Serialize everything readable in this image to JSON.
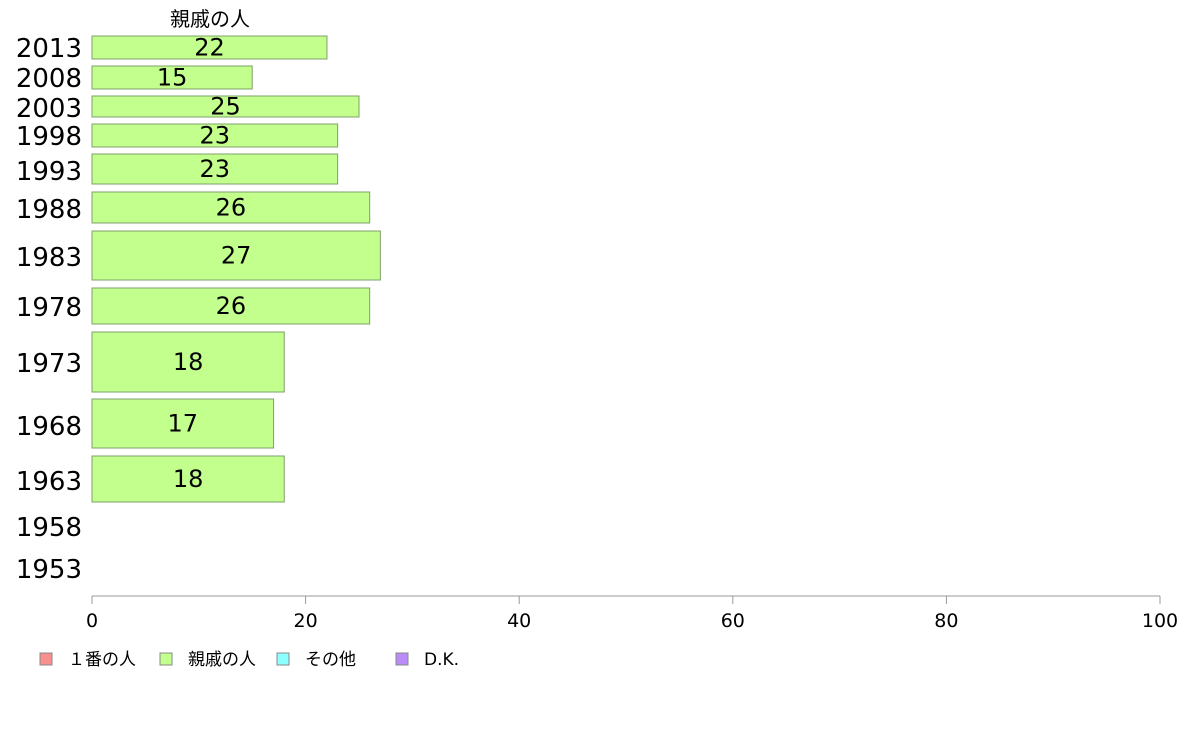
{
  "chart_data": {
    "type": "bar",
    "orientation": "horizontal",
    "stacked": true,
    "title": "",
    "xlabel": "",
    "ylabel": "",
    "xlim": [
      0,
      100
    ],
    "x_ticks": [
      0,
      20,
      40,
      60,
      80,
      100
    ],
    "grid": false,
    "legend_position": "bottom-left",
    "shown_series_title": "親戚の人",
    "categories": [
      "2013",
      "2008",
      "2003",
      "1998",
      "1993",
      "1988",
      "1983",
      "1978",
      "1973",
      "1968",
      "1963",
      "1958",
      "1953"
    ],
    "series": [
      {
        "name": "１番の人",
        "color": "#f78f8f",
        "values": [
          null,
          null,
          null,
          null,
          null,
          null,
          null,
          null,
          null,
          null,
          null,
          null,
          null
        ]
      },
      {
        "name": "親戚の人",
        "color": "#c2ff8c",
        "values": [
          22,
          15,
          25,
          23,
          23,
          26,
          27,
          26,
          18,
          17,
          18,
          null,
          null
        ]
      },
      {
        "name": "その他",
        "color": "#8cffff",
        "values": [
          null,
          null,
          null,
          null,
          null,
          null,
          null,
          null,
          null,
          null,
          null,
          null,
          null
        ]
      },
      {
        "name": "D.K.",
        "color": "#b98cf7",
        "values": [
          null,
          null,
          null,
          null,
          null,
          null,
          null,
          null,
          null,
          null,
          null,
          null,
          null
        ]
      }
    ]
  }
}
